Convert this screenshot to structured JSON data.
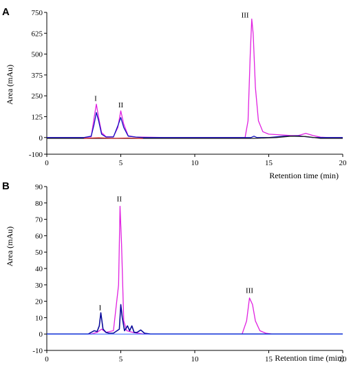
{
  "chart_data": [
    {
      "type": "line",
      "panel": "A",
      "xlabel": "Retention time (min)",
      "ylabel": "Area (mAu)",
      "xlim": [
        0,
        20
      ],
      "ylim": [
        -100,
        750
      ],
      "xticks": [
        "0",
        "5",
        "10",
        "15",
        "20"
      ],
      "yticks": [
        "-100",
        "0",
        "125",
        "250",
        "375",
        "500",
        "625",
        "750"
      ],
      "grid": false,
      "annotations": [
        {
          "text": "I",
          "x": 3.3,
          "y": 220
        },
        {
          "text": "II",
          "x": 5.0,
          "y": 180
        },
        {
          "text": "III",
          "x": 13.4,
          "y": 720
        }
      ],
      "series": [
        {
          "color": "#e020e0",
          "x": [
            0,
            2.5,
            3.0,
            3.2,
            3.35,
            3.5,
            3.7,
            4.0,
            4.5,
            4.8,
            5.0,
            5.2,
            5.5,
            6.0,
            8,
            10,
            12,
            13.4,
            13.6,
            13.75,
            13.85,
            13.95,
            14.1,
            14.3,
            14.6,
            15.0,
            16.0,
            16.5,
            17.0,
            17.5,
            18.0,
            18.5,
            19.0,
            20.0
          ],
          "y": [
            0,
            0,
            5,
            120,
            200,
            120,
            30,
            5,
            5,
            60,
            160,
            80,
            10,
            3,
            0,
            0,
            0,
            0,
            100,
            500,
            710,
            620,
            300,
            100,
            35,
            20,
            15,
            12,
            12,
            25,
            12,
            2,
            0,
            0
          ]
        },
        {
          "color": "#1010c0",
          "x": [
            0,
            2.5,
            3.0,
            3.2,
            3.35,
            3.5,
            3.7,
            4.0,
            4.5,
            4.8,
            5.0,
            5.2,
            5.5,
            6.0,
            6.5,
            8,
            10,
            12,
            13.8,
            14.0,
            14.2,
            15,
            16,
            17,
            18,
            20
          ],
          "y": [
            0,
            0,
            8,
            80,
            150,
            100,
            20,
            3,
            3,
            70,
            120,
            60,
            8,
            3,
            0,
            0,
            0,
            0,
            0,
            8,
            0,
            0,
            8,
            10,
            0,
            0
          ]
        },
        {
          "color": "#202020",
          "x": [
            0,
            2.0,
            4.0,
            6.0,
            8.0,
            10.0,
            12.0,
            14.0,
            15.5,
            16.5,
            17.5,
            18.5,
            20.0
          ],
          "y": [
            -5,
            -5,
            -5,
            -5,
            -5,
            -5,
            -5,
            -5,
            0,
            8,
            6,
            -5,
            -5
          ]
        },
        {
          "color": "#cc2020",
          "x": [
            2.5,
            3.5,
            4.5,
            5.5,
            6.5
          ],
          "y": [
            -5,
            -2,
            -5,
            -3,
            -5
          ]
        }
      ]
    },
    {
      "type": "line",
      "panel": "B",
      "xlabel": "Retention time (min)",
      "ylabel": "Area (mAu)",
      "xlim": [
        0,
        20
      ],
      "ylim": [
        -10,
        90
      ],
      "xticks": [
        "0",
        "5",
        "10",
        "15",
        "20"
      ],
      "yticks": [
        "-10",
        "0",
        "10",
        "20",
        "30",
        "40",
        "50",
        "60",
        "70",
        "80",
        "90"
      ],
      "grid": false,
      "annotations": [
        {
          "text": "I",
          "x": 3.6,
          "y": 14.5
        },
        {
          "text": "II",
          "x": 4.9,
          "y": 81
        },
        {
          "text": "III",
          "x": 13.7,
          "y": 25
        }
      ],
      "series": [
        {
          "color": "#e020e0",
          "x": [
            0,
            2.5,
            3.0,
            3.4,
            3.7,
            4.0,
            4.5,
            4.85,
            4.95,
            5.05,
            5.2,
            5.4,
            5.8,
            6.5,
            8,
            10,
            12,
            13.2,
            13.5,
            13.7,
            13.9,
            14.1,
            14.4,
            14.8,
            15.2,
            17,
            20
          ],
          "y": [
            0,
            0,
            0,
            1,
            3,
            1,
            2,
            30,
            78,
            55,
            8,
            2,
            1,
            0,
            0,
            0,
            0,
            0,
            8,
            22,
            18,
            8,
            2,
            0.5,
            0,
            0,
            0
          ],
          "width": 1.3
        },
        {
          "color": "#0a0a9a",
          "x": [
            0,
            2.8,
            3.0,
            3.2,
            3.4,
            3.55,
            3.65,
            3.8,
            4.0,
            4.2,
            4.5,
            4.9,
            5.0,
            5.1,
            5.25,
            5.45,
            5.6,
            5.75,
            5.9,
            6.1,
            6.35,
            6.6,
            7.0,
            10,
            15,
            20
          ],
          "y": [
            0,
            0,
            1,
            2,
            1.5,
            5,
            13,
            3,
            1,
            0.5,
            0.5,
            3,
            18,
            10,
            2,
            5,
            2,
            5,
            1,
            1,
            2.5,
            0.5,
            0,
            0,
            0,
            0
          ],
          "width": 1.6
        },
        {
          "color": "#3060ff",
          "x": [
            0,
            20
          ],
          "y": [
            0,
            0
          ],
          "width": 1
        }
      ]
    }
  ]
}
